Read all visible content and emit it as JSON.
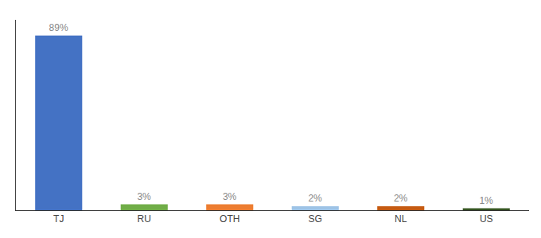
{
  "chart_data": {
    "type": "bar",
    "categories": [
      "TJ",
      "RU",
      "OTH",
      "SG",
      "NL",
      "US"
    ],
    "values": [
      89,
      3,
      3,
      2,
      2,
      1
    ],
    "value_labels": [
      "89%",
      "3%",
      "3%",
      "2%",
      "2%",
      "1%"
    ],
    "data_labels": true,
    "colors": [
      "#4472C4",
      "#70AD47",
      "#ED7D31",
      "#9DC3E6",
      "#C55A11",
      "#375623"
    ],
    "ylim": [
      0,
      97
    ],
    "tick_labels": "x",
    "grid": false
  }
}
